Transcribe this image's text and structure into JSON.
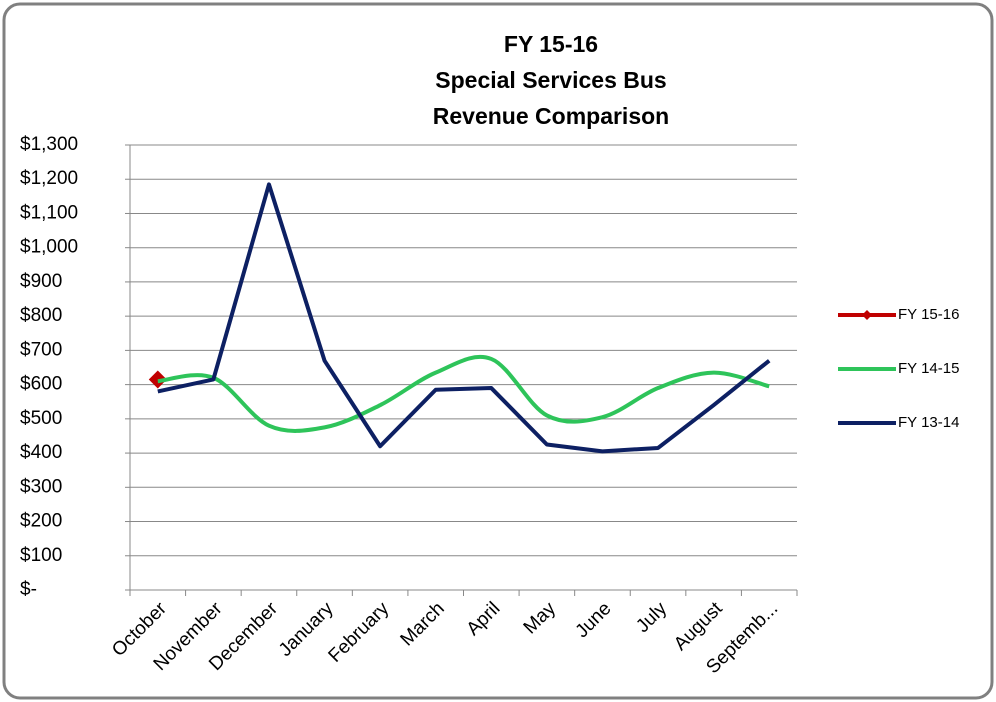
{
  "chart_data": {
    "type": "line",
    "title": [
      "FY 15-16",
      "Special Services Bus",
      "Revenue Comparison"
    ],
    "categories": [
      "October",
      "November",
      "December",
      "January",
      "February",
      "March",
      "April",
      "May",
      "June",
      "July",
      "August",
      "Septemb..."
    ],
    "series": [
      {
        "name": "FY 15-16",
        "color": "#c00000",
        "marker": "diamond",
        "values": [
          615,
          null,
          null,
          null,
          null,
          null,
          null,
          null,
          null,
          null,
          null,
          null
        ]
      },
      {
        "name": "FY 14-15",
        "color": "#2ec45a",
        "smooth": true,
        "values": [
          610,
          620,
          480,
          475,
          540,
          635,
          675,
          510,
          505,
          590,
          635,
          595
        ]
      },
      {
        "name": "FY 13-14",
        "color": "#0d2063",
        "values": [
          580,
          615,
          1185,
          670,
          420,
          585,
          590,
          425,
          405,
          415,
          540,
          670
        ]
      }
    ],
    "ylim": [
      0,
      1300
    ],
    "yticks": [
      {
        "value": 0,
        "label": "$-"
      },
      {
        "value": 100,
        "label": "$100"
      },
      {
        "value": 200,
        "label": "$200"
      },
      {
        "value": 300,
        "label": "$300"
      },
      {
        "value": 400,
        "label": "$400"
      },
      {
        "value": 500,
        "label": "$500"
      },
      {
        "value": 600,
        "label": "$600"
      },
      {
        "value": 700,
        "label": "$700"
      },
      {
        "value": 800,
        "label": "$800"
      },
      {
        "value": 900,
        "label": "$900"
      },
      {
        "value": 1000,
        "label": "$1,000"
      },
      {
        "value": 1100,
        "label": "$1,100"
      },
      {
        "value": 1200,
        "label": "$1,200"
      },
      {
        "value": 1300,
        "label": "$1,300"
      }
    ],
    "grid": true,
    "legend": "right"
  }
}
